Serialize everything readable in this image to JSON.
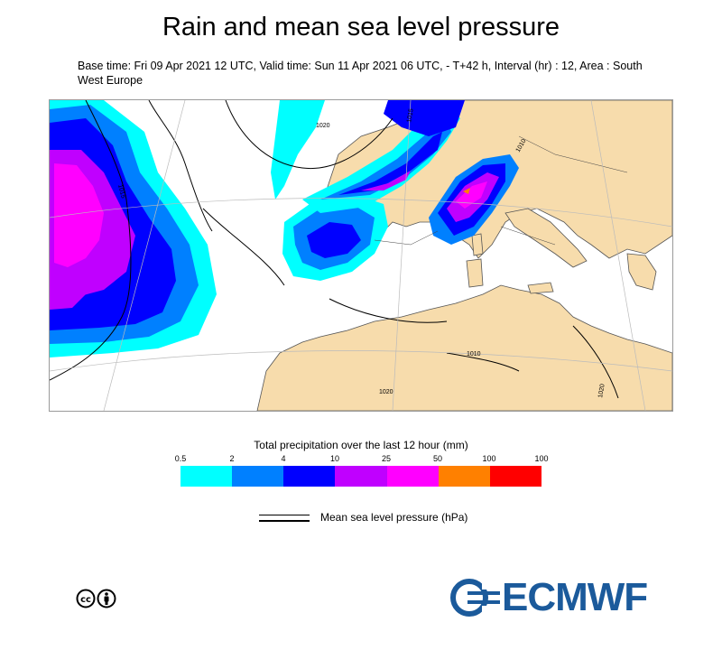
{
  "title": "Rain and mean sea level pressure",
  "subtitle": "Base time: Fri 09 Apr 2021 12 UTC, Valid time: Sun 11 Apr 2021 06 UTC, - T+42 h, Interval (hr) : 12, Area : South West Europe",
  "map": {
    "isobar_labels": [
      "1015",
      "1010",
      "1020",
      "1020",
      "1015",
      "1010",
      "1020"
    ],
    "colors": {
      "land": "#f7dcac",
      "sea": "#ffffff"
    }
  },
  "legend": {
    "title": "Total precipitation over the last 12 hour (mm)",
    "ticks": [
      "0.5",
      "2",
      "4",
      "10",
      "25",
      "50",
      "100",
      "100"
    ],
    "colors": [
      "#00ffff",
      "#0080ff",
      "#0000ff",
      "#c000ff",
      "#ff00ff",
      "#ff8000",
      "#ff0000"
    ]
  },
  "mslp_legend": {
    "label": "Mean sea level pressure (hPa)"
  },
  "logo": {
    "text": "ECMWF",
    "color": "#1b5a9b"
  },
  "license_icon": "cc-by-icon"
}
